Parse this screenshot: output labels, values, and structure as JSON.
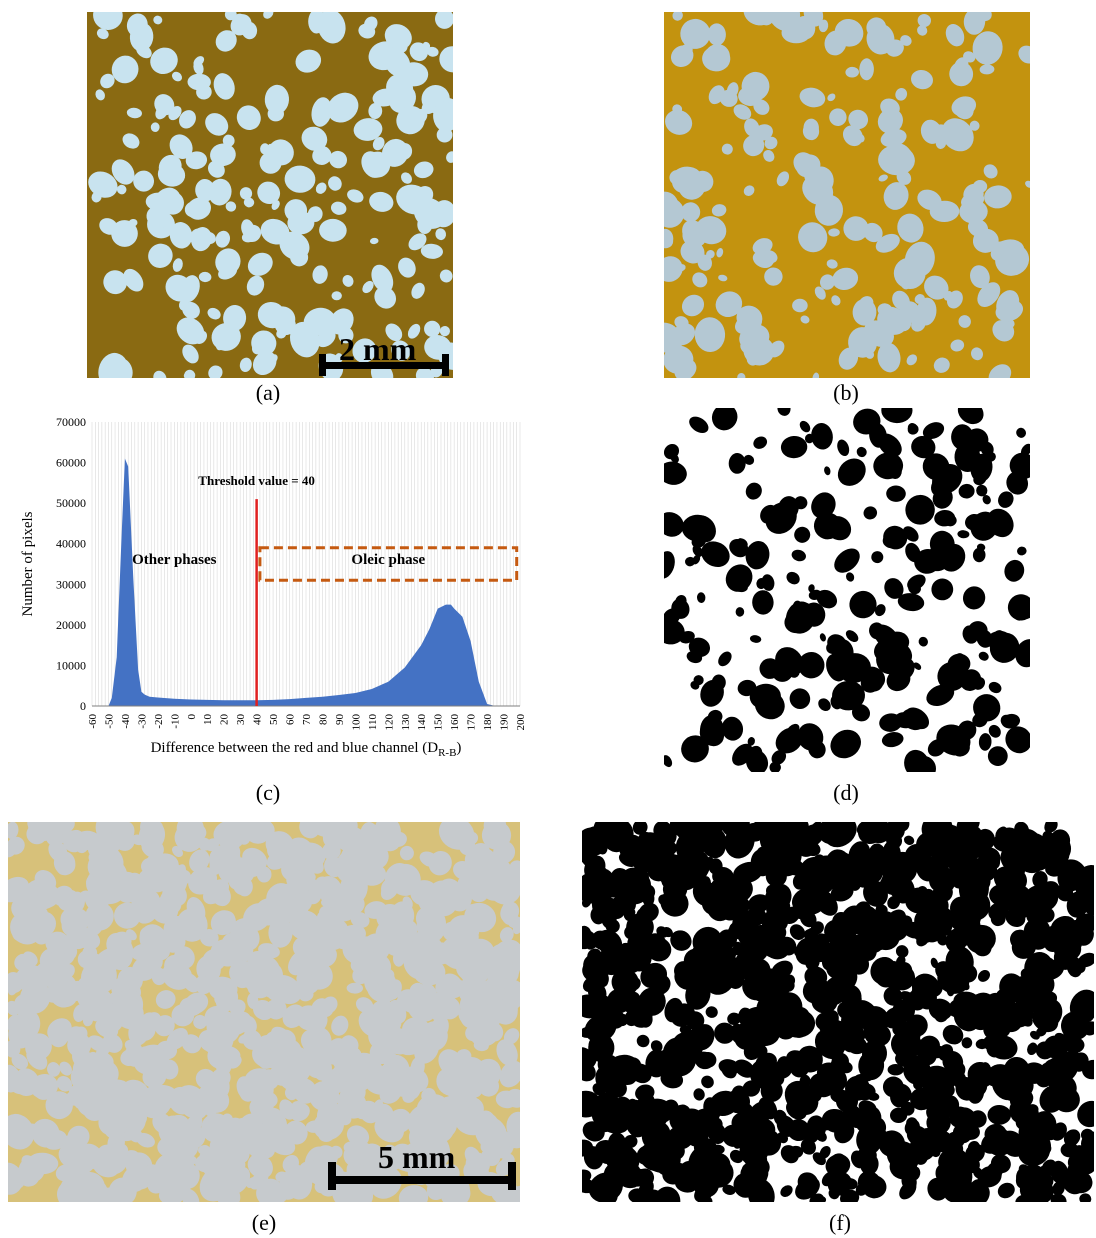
{
  "captions": {
    "a": "(a)",
    "b": "(b)",
    "c": "(c)",
    "d": "(d)",
    "e": "(e)",
    "f": "(f)"
  },
  "scale_bars": {
    "a": "2 mm",
    "e": "5 mm"
  },
  "colors": {
    "oleic_dark_brown": "#8a6a12",
    "oleic_gold": "#c3930f",
    "droplet_light_blue": "#c8e3ef",
    "droplet_grey_blue": "#b4c8d3",
    "panel_e_background": "#c6cacd",
    "panel_e_oleic": "#d7c17a",
    "histogram_fill": "#4472c4",
    "threshold_line": "#e02020",
    "oleic_box": "#c55a11"
  },
  "chart_data": {
    "type": "area",
    "title": "",
    "xlabel": "Difference between the red and blue channel (D",
    "xlabel_subscript": "R-B",
    "xlabel_suffix": ")",
    "ylabel": "Number of pixels",
    "xlim": [
      -60,
      200
    ],
    "ylim": [
      0,
      70000
    ],
    "x_ticks": [
      -60,
      -50,
      -40,
      -30,
      -20,
      -10,
      0,
      10,
      20,
      30,
      40,
      50,
      60,
      70,
      80,
      90,
      100,
      110,
      120,
      130,
      140,
      150,
      160,
      170,
      180,
      190,
      200
    ],
    "y_ticks": [
      0,
      10000,
      20000,
      30000,
      40000,
      50000,
      60000,
      70000
    ],
    "grid": "vertical",
    "series": [
      {
        "x": [
          -60,
          -50,
          -48,
          -45,
          -42,
          -40,
          -38,
          -35,
          -32,
          -30,
          -28,
          -25,
          -20,
          -10,
          0,
          10,
          20,
          30,
          40,
          50,
          60,
          70,
          80,
          90,
          100,
          110,
          120,
          130,
          140,
          145,
          150,
          155,
          158,
          160,
          165,
          170,
          175,
          180,
          185,
          200
        ],
        "values": [
          0,
          0,
          2000,
          12000,
          42000,
          61000,
          59000,
          32000,
          9000,
          3500,
          2800,
          2300,
          2100,
          1800,
          1600,
          1500,
          1400,
          1400,
          1400,
          1500,
          1700,
          2000,
          2300,
          2700,
          3200,
          4200,
          6000,
          9500,
          15000,
          19000,
          24000,
          25000,
          25000,
          24000,
          22000,
          16000,
          6000,
          500,
          0,
          0
        ]
      }
    ],
    "threshold": {
      "value": 40,
      "label": "Threshold value = 40"
    },
    "annotations": {
      "left_region": "Other phases",
      "right_region": "Oleic phase"
    }
  }
}
